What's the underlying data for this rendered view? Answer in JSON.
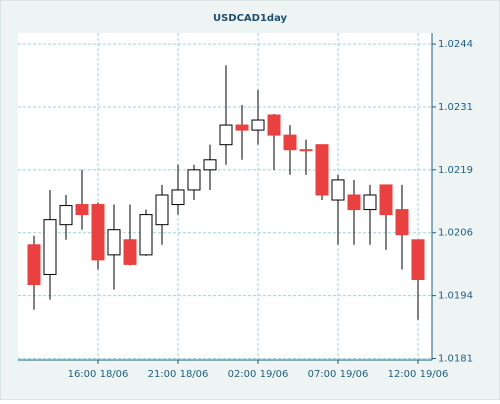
{
  "chart_data": {
    "type": "candlestick",
    "title": "USDCAD1day",
    "categories": [
      null,
      null,
      null,
      null,
      "16:00 18/06",
      null,
      null,
      null,
      null,
      "21:00 18/06",
      null,
      null,
      null,
      null,
      "02:00 19/06",
      null,
      null,
      null,
      null,
      "07:00 19/06",
      null,
      null,
      null,
      null,
      "12:00 19/06"
    ],
    "series": [
      {
        "up_color": "#ffffff",
        "down_color": "#e8413f",
        "open": [
          1.02039,
          1.0198,
          1.02079,
          1.02119,
          1.02119,
          1.02019,
          1.02049,
          1.02019,
          1.02079,
          1.02119,
          1.02148,
          1.02188,
          1.02238,
          1.02277,
          1.02267,
          1.02297,
          1.02257,
          1.02228,
          1.02238,
          1.02128,
          1.02138,
          1.02109,
          1.02158,
          1.02109,
          1.02049
        ],
        "high": [
          1.02057,
          1.02148,
          1.02138,
          1.02188,
          1.02123,
          1.02119,
          1.02119,
          1.02109,
          1.02158,
          1.02198,
          1.02198,
          1.02238,
          1.02396,
          1.02317,
          1.02347,
          1.02299,
          1.02277,
          1.02248,
          1.02238,
          1.02178,
          1.02168,
          1.02158,
          1.02158,
          1.02158,
          1.02049
        ],
        "low": [
          1.0191,
          1.0193,
          1.02049,
          1.02069,
          1.0199,
          1.0195,
          1.01998,
          1.02017,
          1.02039,
          1.02099,
          1.02128,
          1.02148,
          1.02198,
          1.02208,
          1.02238,
          1.02188,
          1.02178,
          1.02178,
          1.02128,
          1.02039,
          1.02039,
          1.02039,
          1.02029,
          1.0199,
          1.0189
        ],
        "close": [
          1.0196,
          1.02089,
          1.02117,
          1.02099,
          1.02009,
          1.02069,
          1.02,
          1.02099,
          1.02138,
          1.02148,
          1.02188,
          1.02208,
          1.02277,
          1.02267,
          1.02287,
          1.02257,
          1.02228,
          1.02226,
          1.02138,
          1.02168,
          1.02109,
          1.02138,
          1.02099,
          1.02059,
          1.0197
        ]
      }
    ],
    "ylim": [
      1.0181,
      1.0246
    ],
    "yticks": [
      {
        "value": 1.01813,
        "label": "1.0181"
      },
      {
        "value": 1.01938,
        "label": "1.0194"
      },
      {
        "value": 1.02063,
        "label": "1.0206"
      },
      {
        "value": 1.02188,
        "label": "1.0219"
      },
      {
        "value": 1.02313,
        "label": "1.0231"
      },
      {
        "value": 1.02438,
        "label": "1.0244"
      }
    ],
    "grid": true
  }
}
